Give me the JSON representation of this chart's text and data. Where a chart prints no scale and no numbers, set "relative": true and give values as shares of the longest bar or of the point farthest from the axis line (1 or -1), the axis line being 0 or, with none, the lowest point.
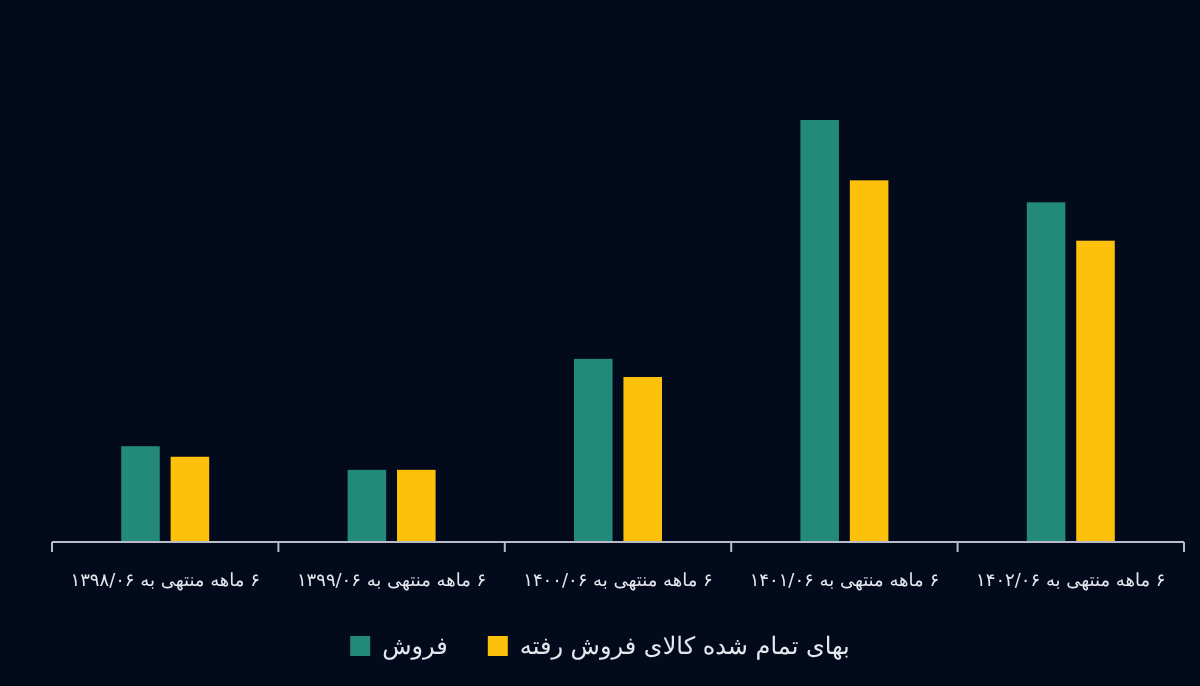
{
  "chart_data": {
    "type": "bar",
    "relative": true,
    "categories": [
      "۶ ماهه منتهی به ۱۳۹۸/۰۶",
      "۶ ماهه منتهی به ۱۳۹۹/۰۶",
      "۶ ماهه منتهی به ۱۴۰۰/۰۶",
      "۶ ماهه منتهی به ۱۴۰۱/۰۶",
      "۶ ماهه منتهی به ۱۴۰۲/۰۶"
    ],
    "series": [
      {
        "name": "فروش",
        "color": "#23897a",
        "values": [
          0.227,
          0.171,
          0.434,
          1,
          0.805
        ]
      },
      {
        "name": "بهای تمام شده کالای فروش رفته",
        "color": "#fec10b",
        "values": [
          0.202,
          0.171,
          0.391,
          0.857,
          0.714
        ]
      }
    ],
    "legend": "bottom"
  }
}
